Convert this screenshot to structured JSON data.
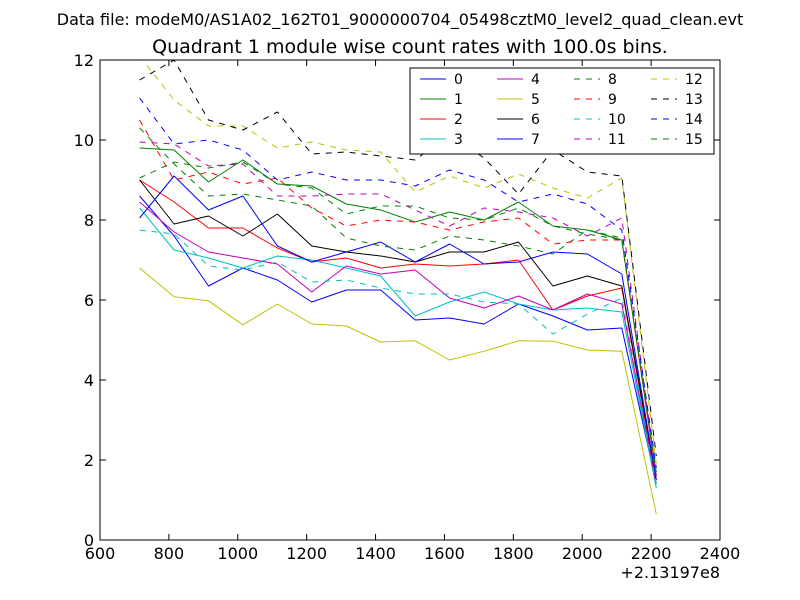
{
  "chart_data": {
    "type": "line",
    "suptitle": "Data file: modeM0/AS1A02_162T01_9000000704_05498cztM0_level2_quad_clean.evt",
    "title": "Quadrant 1 module wise count rates with 100.0s bins.",
    "xlabel": "",
    "ylabel": "",
    "xlim": [
      600,
      2400
    ],
    "ylim": [
      0,
      12
    ],
    "x_ticks": [
      600,
      800,
      1000,
      1200,
      1400,
      1600,
      1800,
      2000,
      2200,
      2400
    ],
    "y_ticks": [
      0,
      2,
      4,
      6,
      8,
      10,
      12
    ],
    "x_offset_label": "+2.13197e8",
    "grid": false,
    "legend_position": "top-right",
    "legend_columns": 4,
    "x": [
      715,
      815,
      915,
      1015,
      1115,
      1215,
      1315,
      1415,
      1515,
      1615,
      1715,
      1815,
      1915,
      2015,
      2115,
      2215
    ],
    "series": [
      {
        "name": "0",
        "color": "#0000ff",
        "dash": "solid",
        "values": [
          8.6,
          7.6,
          6.35,
          6.8,
          6.5,
          5.95,
          6.25,
          6.25,
          5.5,
          5.55,
          5.4,
          5.9,
          5.6,
          5.25,
          5.3,
          1.4
        ]
      },
      {
        "name": "1",
        "color": "#008000",
        "dash": "solid",
        "values": [
          9.8,
          9.75,
          8.95,
          9.5,
          8.9,
          8.85,
          8.4,
          8.25,
          7.95,
          8.2,
          8.0,
          8.45,
          7.85,
          7.75,
          7.5,
          1.6
        ]
      },
      {
        "name": "2",
        "color": "#ff0000",
        "dash": "solid",
        "values": [
          9.0,
          8.45,
          7.8,
          7.8,
          7.3,
          6.95,
          7.05,
          6.8,
          6.9,
          6.85,
          6.9,
          7.0,
          5.75,
          6.1,
          6.3,
          1.4
        ]
      },
      {
        "name": "3",
        "color": "#00bfbf",
        "dash": "solid",
        "values": [
          8.3,
          7.25,
          7.05,
          6.8,
          7.1,
          7.0,
          6.8,
          6.6,
          5.6,
          5.95,
          6.2,
          5.9,
          5.75,
          5.8,
          5.7,
          1.3
        ]
      },
      {
        "name": "4",
        "color": "#bf00bf",
        "dash": "solid",
        "values": [
          8.45,
          7.7,
          7.2,
          7.05,
          6.9,
          6.2,
          6.85,
          6.65,
          6.75,
          6.05,
          5.8,
          6.1,
          5.75,
          6.15,
          5.9,
          1.4
        ]
      },
      {
        "name": "5",
        "color": "#bfbf00",
        "dash": "solid",
        "values": [
          6.8,
          6.08,
          5.98,
          5.38,
          5.9,
          5.4,
          5.35,
          4.95,
          4.98,
          4.5,
          4.72,
          4.98,
          4.97,
          4.75,
          4.72,
          0.65
        ]
      },
      {
        "name": "6",
        "color": "#000000",
        "dash": "solid",
        "values": [
          9.0,
          7.9,
          8.1,
          7.6,
          8.15,
          7.35,
          7.2,
          7.1,
          6.95,
          7.2,
          7.2,
          7.45,
          6.35,
          6.6,
          6.35,
          1.5
        ]
      },
      {
        "name": "7",
        "color": "#0000ff",
        "dash": "solid",
        "values": [
          8.05,
          9.1,
          8.25,
          8.6,
          7.35,
          6.95,
          7.2,
          7.45,
          6.95,
          7.4,
          6.9,
          6.95,
          7.2,
          7.15,
          6.65,
          1.5
        ]
      },
      {
        "name": "8",
        "color": "#008000",
        "dash": "dashed",
        "values": [
          10.3,
          9.4,
          8.6,
          8.65,
          8.5,
          8.35,
          7.55,
          7.35,
          7.25,
          7.6,
          7.5,
          7.35,
          7.15,
          7.75,
          7.55,
          1.6
        ]
      },
      {
        "name": "9",
        "color": "#ff0000",
        "dash": "dashed",
        "values": [
          10.5,
          9.0,
          9.2,
          8.9,
          9.05,
          8.3,
          7.85,
          8.0,
          7.95,
          7.75,
          7.95,
          8.05,
          7.4,
          7.5,
          7.5,
          1.6
        ]
      },
      {
        "name": "10",
        "color": "#00bfbf",
        "dash": "dashed",
        "values": [
          7.75,
          7.65,
          6.85,
          6.75,
          6.95,
          6.45,
          6.5,
          6.3,
          6.15,
          6.15,
          5.95,
          5.9,
          5.15,
          5.65,
          6.05,
          1.4
        ]
      },
      {
        "name": "11",
        "color": "#bf00bf",
        "dash": "dashed",
        "values": [
          9.95,
          9.9,
          9.35,
          9.4,
          8.6,
          8.6,
          8.65,
          8.65,
          8.25,
          7.85,
          8.3,
          8.2,
          8.05,
          7.6,
          8.05,
          1.6
        ]
      },
      {
        "name": "12",
        "color": "#bfbf00",
        "dash": "dashed",
        "values": [
          12.1,
          11.0,
          10.35,
          10.35,
          9.8,
          9.95,
          9.75,
          9.7,
          8.7,
          9.1,
          8.8,
          9.15,
          8.8,
          8.55,
          9.05,
          1.9
        ]
      },
      {
        "name": "13",
        "color": "#000000",
        "dash": "dashed",
        "values": [
          11.5,
          12.0,
          10.5,
          10.25,
          10.7,
          9.65,
          9.7,
          9.6,
          9.5,
          10.15,
          9.55,
          8.65,
          9.75,
          9.2,
          9.1,
          2.1
        ]
      },
      {
        "name": "14",
        "color": "#0000ff",
        "dash": "dashed",
        "values": [
          11.05,
          9.9,
          10.0,
          9.75,
          9.0,
          9.2,
          9.0,
          9.0,
          8.85,
          9.25,
          9.0,
          8.45,
          8.65,
          8.4,
          7.75,
          1.8
        ]
      },
      {
        "name": "15",
        "color": "#008000",
        "dash": "dashed",
        "values": [
          9.05,
          9.45,
          9.3,
          9.45,
          8.9,
          8.8,
          8.15,
          8.35,
          8.35,
          8.05,
          8.0,
          8.3,
          7.85,
          7.65,
          7.5,
          1.7
        ]
      }
    ]
  }
}
